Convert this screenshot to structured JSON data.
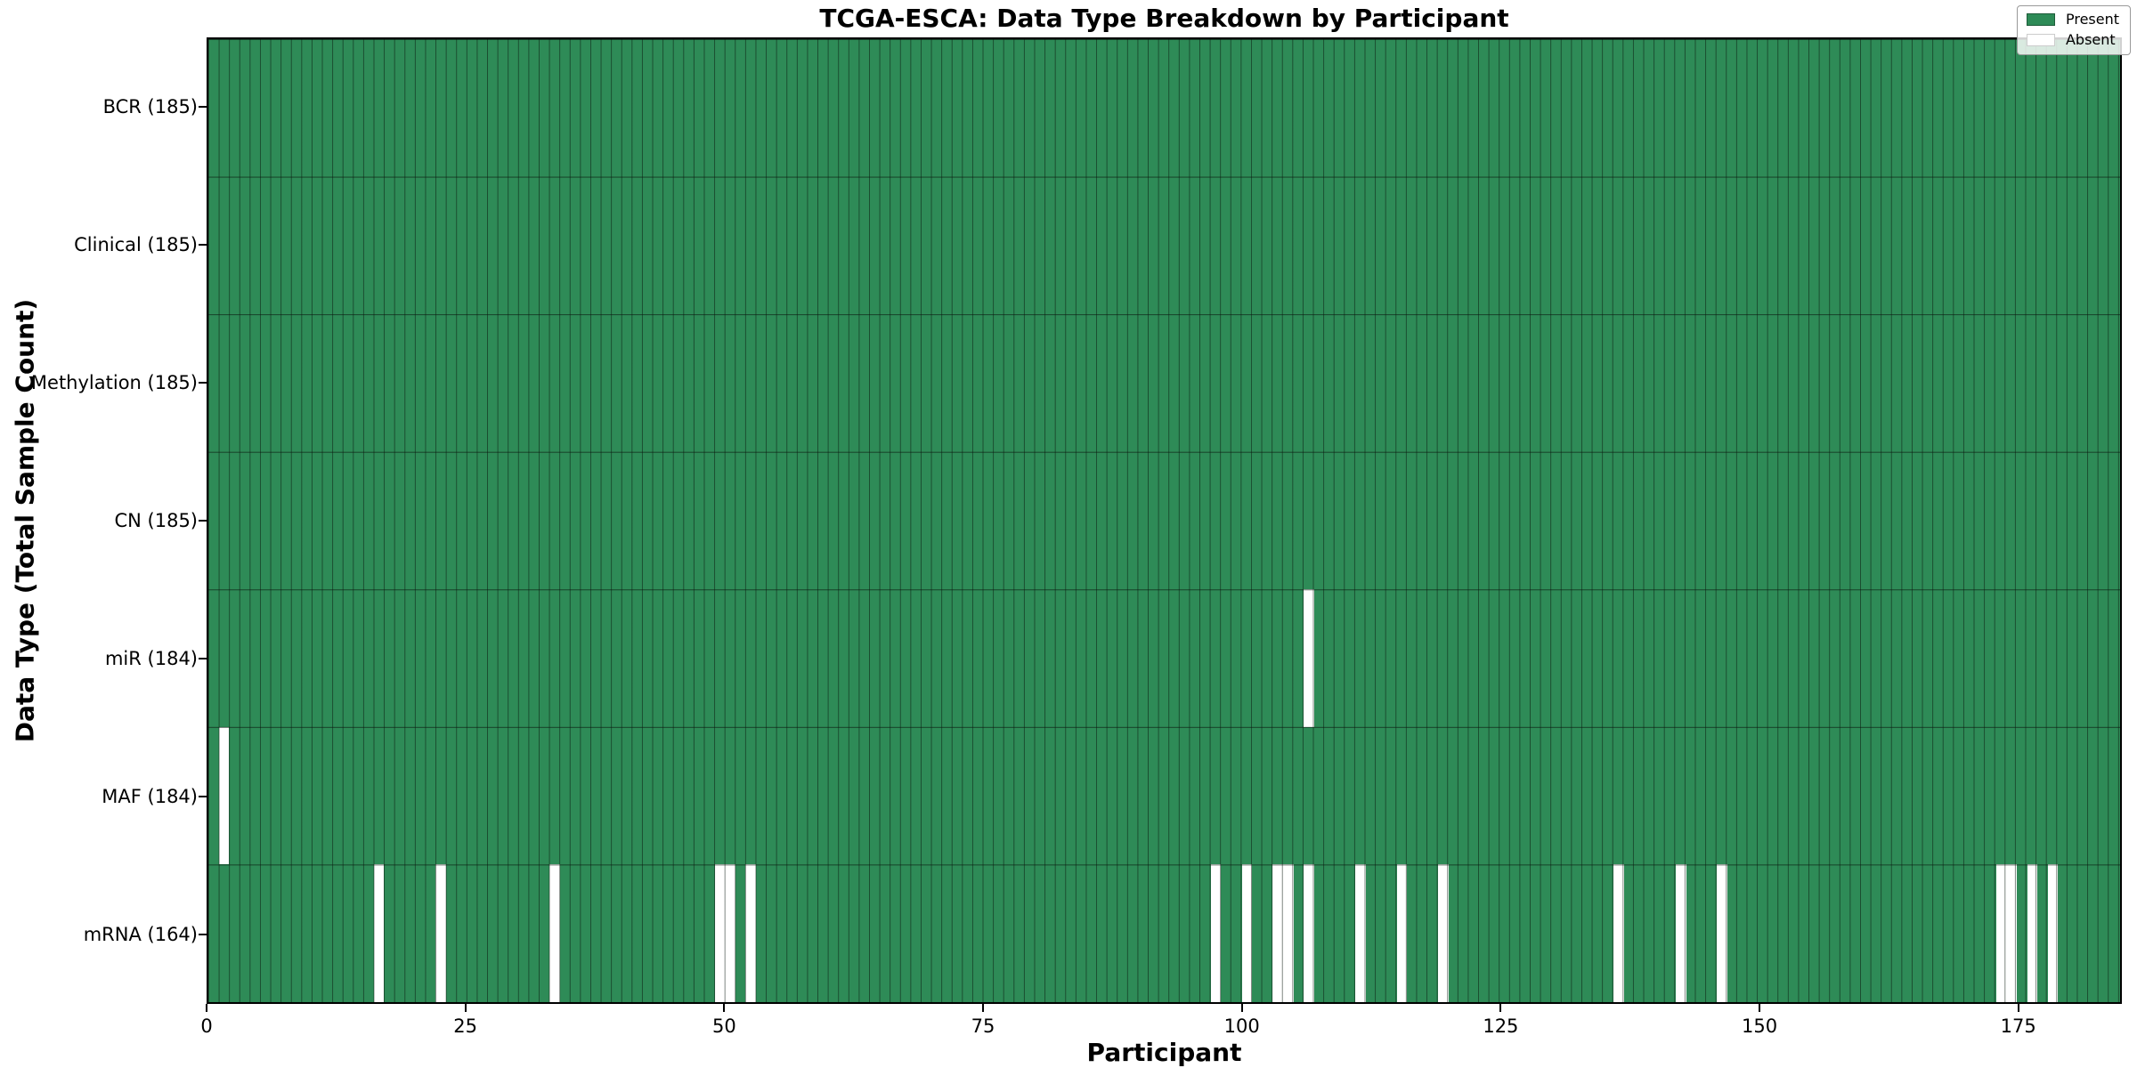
{
  "title": "TCGA-ESCA: Data Type Breakdown by Participant",
  "x_axis_label": "Participant",
  "y_axis_label": "Data Type (Total Sample Count)",
  "legend": {
    "present_label": "Present",
    "absent_label": "Absent"
  },
  "colors": {
    "present": "#2e8b57",
    "absent": "#ffffff",
    "grid": "rgba(10,25,15,0.55)",
    "spine": "#000000"
  },
  "chart_data": {
    "type": "heatmap",
    "xlabel": "Participant",
    "ylabel": "Data Type (Total Sample Count)",
    "n_participants": 185,
    "x_ticks": [
      0,
      25,
      50,
      75,
      100,
      125,
      150,
      175
    ],
    "x_range": [
      0,
      185
    ],
    "grid": true,
    "legend_position": "upper right",
    "rows": [
      {
        "name": "BCR",
        "label": "BCR (185)",
        "total": 185,
        "absent": []
      },
      {
        "name": "Clinical",
        "label": "Clinical (185)",
        "total": 185,
        "absent": []
      },
      {
        "name": "Methylation",
        "label": "Methylation (185)",
        "total": 185,
        "absent": []
      },
      {
        "name": "CN",
        "label": "CN (185)",
        "total": 185,
        "absent": []
      },
      {
        "name": "miR",
        "label": "miR (184)",
        "total": 184,
        "absent": [
          106
        ]
      },
      {
        "name": "MAF",
        "label": "MAF (184)",
        "total": 184,
        "absent": [
          1
        ]
      },
      {
        "name": "mRNA",
        "label": "mRNA (164)",
        "total": 164,
        "absent": [
          16,
          22,
          33,
          49,
          50,
          52,
          97,
          100,
          103,
          104,
          106,
          111,
          115,
          119,
          136,
          142,
          146,
          173,
          174,
          176,
          178
        ]
      }
    ]
  }
}
